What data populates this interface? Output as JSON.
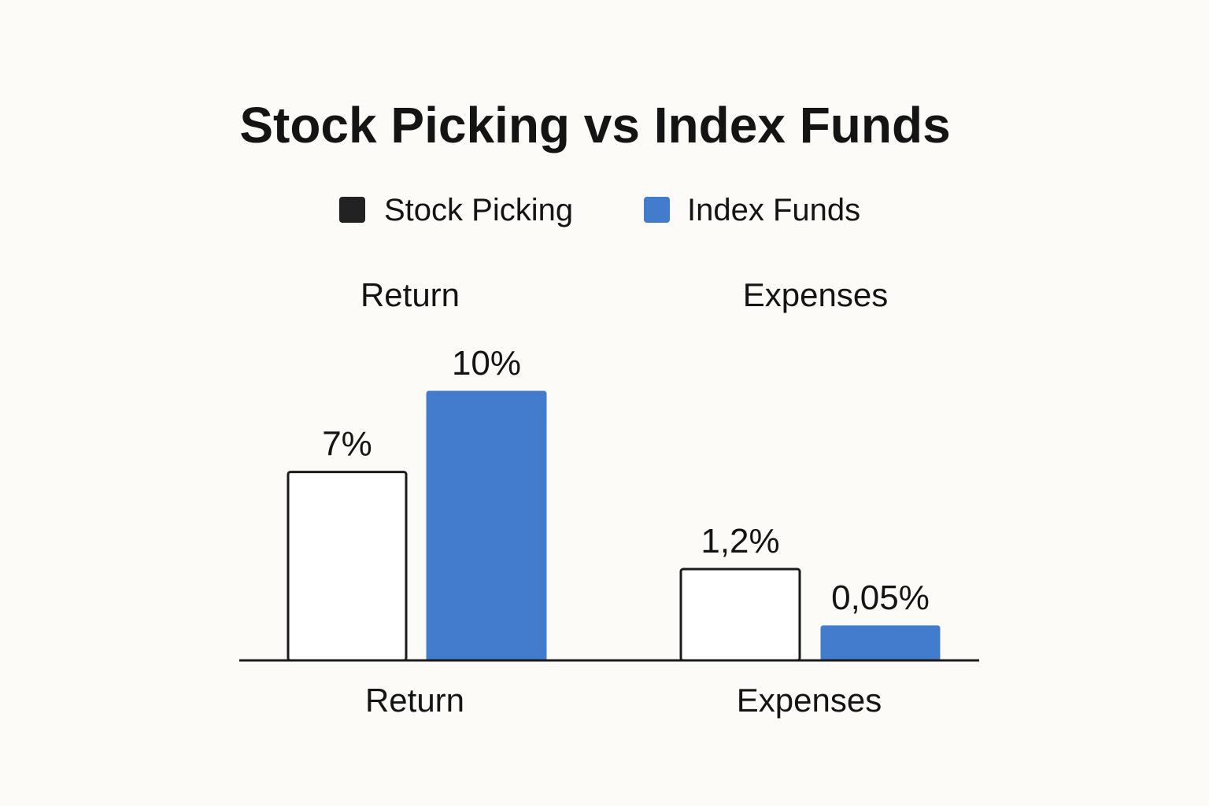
{
  "chart_data": {
    "type": "bar",
    "title": "Stock Picking vs Index Funds",
    "groups": [
      "Return",
      "Expenses"
    ],
    "categories": [
      "Return",
      "Expenses"
    ],
    "series": [
      {
        "name": "Stock Picking",
        "values": [
          7,
          1.2
        ],
        "labels": [
          "7%",
          "1,2%"
        ]
      },
      {
        "name": "Index Funds",
        "values": [
          10,
          0.05
        ],
        "labels": [
          "10%",
          "0,05%"
        ]
      }
    ],
    "legend": {
      "placement": "top-center",
      "items": [
        {
          "label": "Stock Picking",
          "color": "#222222"
        },
        {
          "label": "Index Funds",
          "color": "#437ccc"
        }
      ]
    },
    "colors": {
      "stock_picking_fill": "#ffffff",
      "stock_picking_stroke": "#1b1b1b",
      "index_funds_fill": "#437ccc",
      "baseline": "#1b1b1b"
    },
    "grid": false
  }
}
